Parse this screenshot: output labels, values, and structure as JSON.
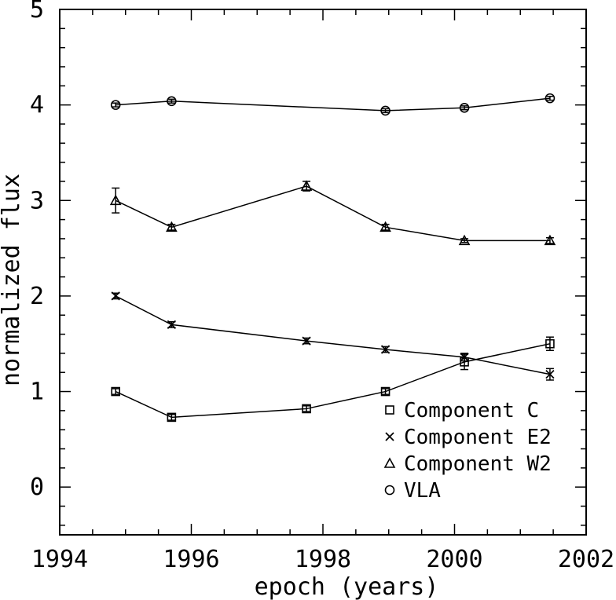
{
  "chart_data": {
    "type": "line",
    "title": "",
    "xlabel": "epoch (years)",
    "ylabel": "normalized flux",
    "xlim": [
      1994,
      2002
    ],
    "ylim": [
      -0.5,
      5
    ],
    "xticks": [
      1994,
      1996,
      1998,
      2000,
      2002
    ],
    "yticks": [
      0,
      1,
      2,
      3,
      4,
      5
    ],
    "xtick_labels": [
      "1994",
      "1996",
      "1998",
      "2000",
      "2002"
    ],
    "ytick_labels": [
      "0",
      "1",
      "2",
      "3",
      "4",
      "5"
    ],
    "legend_position": "bottom-right",
    "series": [
      {
        "name": "VLA",
        "marker": "circle",
        "x": [
          1994.85,
          1995.7,
          1998.95,
          2000.15,
          2001.45
        ],
        "y": [
          4.0,
          4.04,
          3.94,
          3.97,
          4.07
        ],
        "err": [
          0.02,
          0.02,
          0.02,
          0.02,
          0.02
        ]
      },
      {
        "name": "Component W2",
        "marker": "triangle",
        "x": [
          1994.85,
          1995.7,
          1997.75,
          1998.95,
          2000.15,
          2001.45
        ],
        "y": [
          3.0,
          2.72,
          3.15,
          2.72,
          2.58,
          2.58
        ],
        "err": [
          0.13,
          0.03,
          0.05,
          0.03,
          0.02,
          0.03
        ]
      },
      {
        "name": "Component E2",
        "marker": "cross",
        "x": [
          1994.85,
          1995.7,
          1997.75,
          1998.95,
          2000.15,
          2001.45
        ],
        "y": [
          2.0,
          1.7,
          1.53,
          1.44,
          1.36,
          1.18
        ],
        "err": [
          0.03,
          0.03,
          0.03,
          0.03,
          0.04,
          0.06
        ]
      },
      {
        "name": "Component C",
        "marker": "square",
        "x": [
          1994.85,
          1995.7,
          1997.75,
          1998.95,
          2000.15,
          2001.45
        ],
        "y": [
          1.0,
          0.73,
          0.82,
          1.0,
          1.31,
          1.5
        ],
        "err": [
          0.03,
          0.03,
          0.03,
          0.03,
          0.08,
          0.07
        ]
      }
    ],
    "legend": [
      {
        "label": "Component C",
        "marker": "square"
      },
      {
        "label": "Component E2",
        "marker": "cross"
      },
      {
        "label": "Component W2",
        "marker": "triangle"
      },
      {
        "label": "VLA",
        "marker": "circle"
      }
    ]
  }
}
